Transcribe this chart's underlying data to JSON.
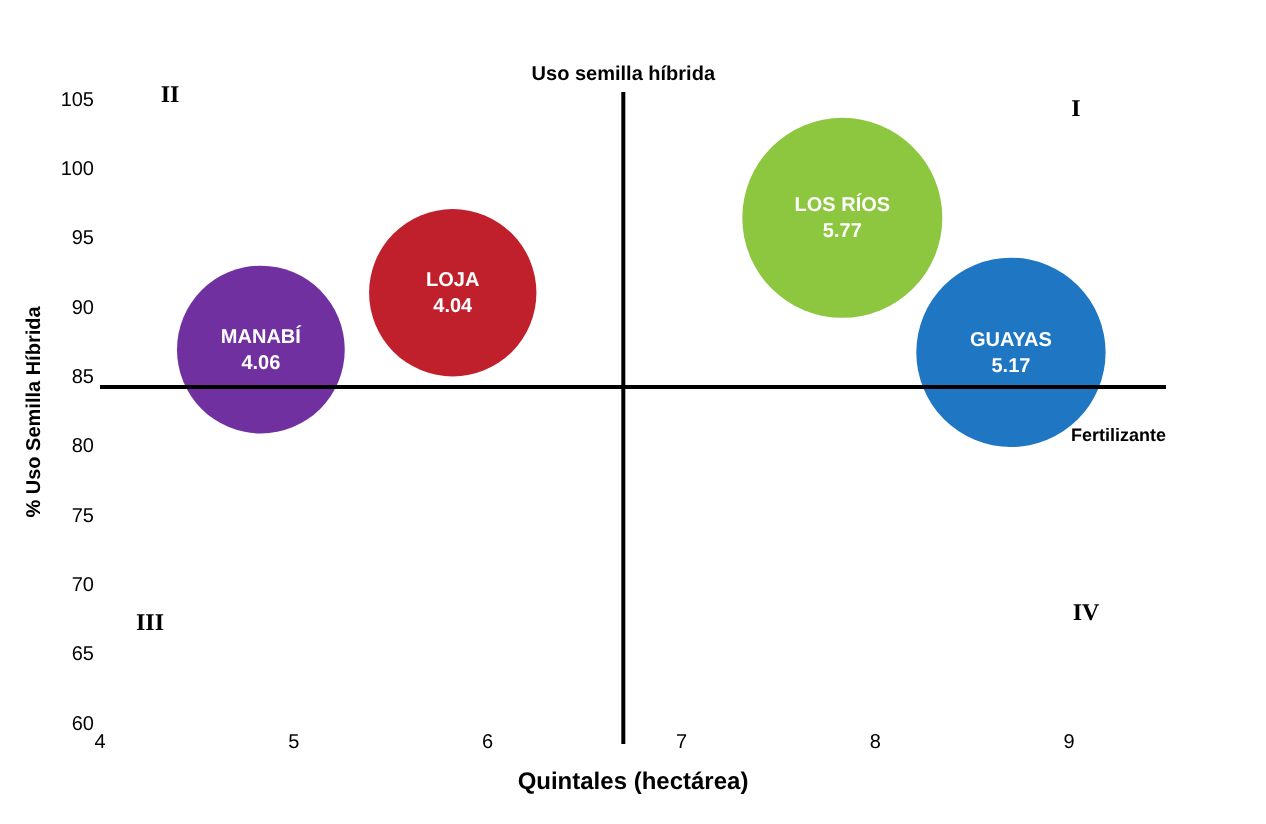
{
  "chart_data": {
    "type": "bubble",
    "xlabel": "Quintales (hectárea)",
    "ylabel": "% Uso Semilla Híbrida",
    "xlim": [
      4,
      9.5
    ],
    "xticks": [
      4,
      5,
      6,
      7,
      8,
      9
    ],
    "ylim": [
      60,
      105
    ],
    "yticks": [
      60,
      65,
      70,
      75,
      80,
      85,
      90,
      95,
      100,
      105
    ],
    "grid": false,
    "legend": false,
    "series": [
      {
        "name": "MANABÍ",
        "color": "#7030a0",
        "x": [
          4.83
        ],
        "values": [
          87.0
        ],
        "sizes": [
          4.06
        ],
        "value_labels": [
          "4.06"
        ]
      },
      {
        "name": "LOJA",
        "color": "#c0202c",
        "x": [
          5.82
        ],
        "values": [
          91.1
        ],
        "sizes": [
          4.04
        ],
        "value_labels": [
          "4.04"
        ]
      },
      {
        "name": "LOS RÍOS",
        "color": "#8dc63f",
        "x": [
          7.83
        ],
        "values": [
          96.5
        ],
        "sizes": [
          5.77
        ],
        "value_labels": [
          "5.77"
        ]
      },
      {
        "name": "GUAYAS",
        "color": "#1f77c4",
        "x": [
          8.7
        ],
        "values": [
          86.8
        ],
        "sizes": [
          5.17
        ],
        "value_labels": [
          "5.17"
        ]
      }
    ],
    "ref_lines": [
      {
        "axis": "x",
        "value": 6.7,
        "label": "Uso semilla híbrida",
        "color": "#000000"
      },
      {
        "axis": "y",
        "value": 84.3,
        "label": "Fertilizante",
        "color": "#000000"
      }
    ],
    "annotations": [
      "I",
      "II",
      "III",
      "IV"
    ]
  }
}
